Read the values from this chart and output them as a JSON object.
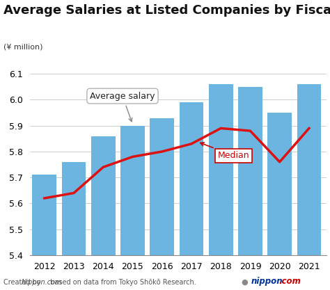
{
  "title": "Average Salaries at Listed Companies by Fiscal Year",
  "ylabel": "(¥ million)",
  "years": [
    2012,
    2013,
    2014,
    2015,
    2016,
    2017,
    2018,
    2019,
    2020,
    2021
  ],
  "avg_salary": [
    5.71,
    5.76,
    5.86,
    5.9,
    5.93,
    5.99,
    6.06,
    6.05,
    5.95,
    6.06
  ],
  "median": [
    5.62,
    5.64,
    5.74,
    5.78,
    5.8,
    5.83,
    5.89,
    5.88,
    5.76,
    5.89
  ],
  "bar_color": "#6bb5e0",
  "line_color": "#dd1111",
  "ylim_min": 5.4,
  "ylim_max": 6.15,
  "yticks": [
    5.4,
    5.5,
    5.6,
    5.7,
    5.8,
    5.9,
    6.0,
    6.1
  ],
  "bg_color": "#ffffff",
  "footer_left": "Created by ",
  "footer_italic": "Nippon.com",
  "footer_rest": " based on data from Tokyo Shōkō Research.",
  "annotation_avg": "Average salary",
  "annotation_med": "Median",
  "title_fontsize": 13,
  "tick_fontsize": 9,
  "ylabel_fontsize": 8
}
